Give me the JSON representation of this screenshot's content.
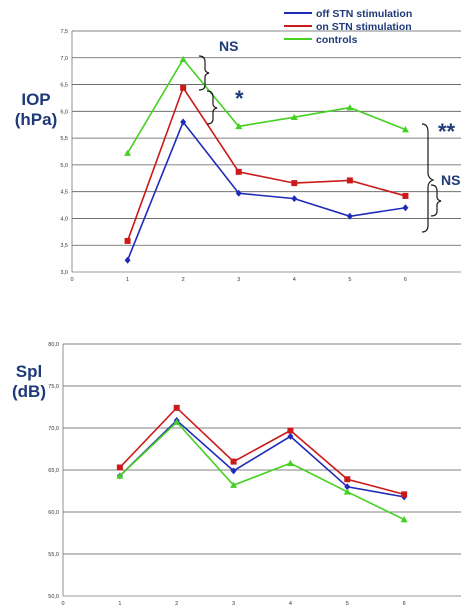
{
  "colors": {
    "off": "#1f2bb8",
    "on": "#cc1a1a",
    "controls": "#44d11f",
    "annotation": "#1f3a78"
  },
  "legend": {
    "off_label": "off STN stimulation",
    "on_label": "on STN stimulation",
    "controls_label": "controls"
  },
  "chart_data": [
    {
      "type": "line",
      "ylabel_line1": "IOP",
      "ylabel_line2": "(hPa)",
      "x": [
        1,
        2,
        3,
        4,
        5,
        6
      ],
      "xticks": [
        "0",
        "1",
        "2",
        "3",
        "4",
        "5",
        "6"
      ],
      "xlim": [
        0,
        7
      ],
      "ylim": [
        3.0,
        7.5
      ],
      "yticks": [
        "3,0",
        "3,5",
        "4,0",
        "4,5",
        "5,0",
        "5,5",
        "6,0",
        "6,5",
        "7,0",
        "7,5"
      ],
      "series": [
        {
          "name": "off STN stimulation",
          "key": "off",
          "marker": "diamond",
          "values": [
            3.22,
            5.8,
            4.47,
            4.37,
            4.04,
            4.2
          ]
        },
        {
          "name": "on STN stimulation",
          "key": "on",
          "marker": "square",
          "values": [
            3.58,
            6.44,
            4.87,
            4.66,
            4.71,
            4.42
          ]
        },
        {
          "name": "controls",
          "key": "controls",
          "marker": "triangle",
          "values": [
            5.22,
            6.97,
            5.72,
            5.89,
            6.07,
            5.66
          ]
        }
      ],
      "annotations": {
        "ns_top": "NS",
        "star": "*",
        "double_star": "**",
        "ns_right": "NS"
      },
      "legend_position": "top-right",
      "grid": true
    },
    {
      "type": "line",
      "ylabel_line1": "Spl",
      "ylabel_line2": "(dB)",
      "x": [
        1,
        2,
        3,
        4,
        5,
        6
      ],
      "xticks": [
        "0",
        "1",
        "2",
        "3",
        "4",
        "5",
        "6"
      ],
      "xlim": [
        0,
        7
      ],
      "ylim": [
        50.0,
        80.0
      ],
      "yticks": [
        "50,0",
        "55,0",
        "60,0",
        "65,0",
        "70,0",
        "75,0",
        "80,0"
      ],
      "series": [
        {
          "name": "off STN stimulation",
          "key": "off",
          "marker": "diamond",
          "values": [
            64.3,
            70.9,
            64.9,
            69.0,
            63.0,
            61.8
          ]
        },
        {
          "name": "on STN stimulation",
          "key": "on",
          "marker": "square",
          "values": [
            65.3,
            72.4,
            66.0,
            69.7,
            63.9,
            62.1
          ]
        },
        {
          "name": "controls",
          "key": "controls",
          "marker": "triangle",
          "values": [
            64.3,
            70.7,
            63.2,
            65.8,
            62.4,
            59.1
          ]
        }
      ],
      "grid": true
    }
  ]
}
